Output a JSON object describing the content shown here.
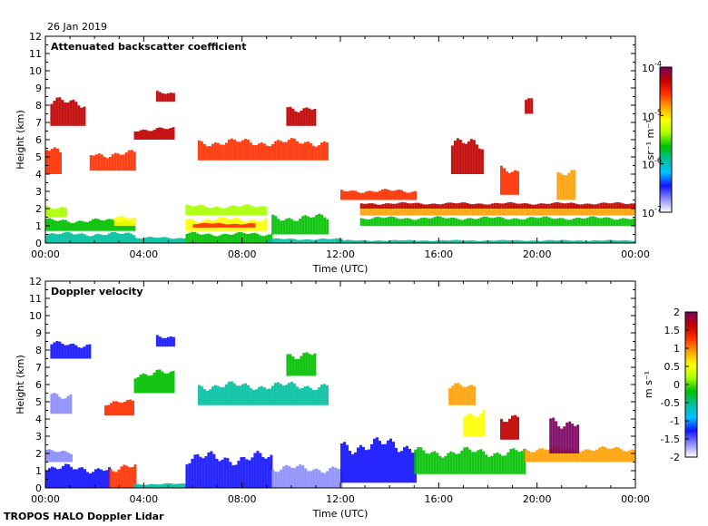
{
  "date_label": "26 Jan 2019",
  "footer": "TROPOS HALO Doppler Lidar",
  "colors": {
    "stops": [
      "#ffffff",
      "#8c8cff",
      "#1414ff",
      "#00bfff",
      "#00c0a0",
      "#00c000",
      "#aaff00",
      "#ffff00",
      "#ffa000",
      "#ff3000",
      "#c00000",
      "#7a0060"
    ]
  },
  "chart_data": [
    {
      "type": "heatmap",
      "title": "Attenuated backscatter coefficient",
      "xlabel": "Time (UTC)",
      "ylabel": "Height (km)",
      "xlim": [
        0,
        24
      ],
      "ylim": [
        0,
        12
      ],
      "x_ticks": [
        "00:00",
        "04:00",
        "08:00",
        "12:00",
        "16:00",
        "20:00",
        "00:00"
      ],
      "y_ticks": [
        "0",
        "1",
        "2",
        "3",
        "4",
        "5",
        "6",
        "7",
        "8",
        "9",
        "10",
        "11",
        "12"
      ],
      "colorbar": {
        "scale": "log",
        "range": [
          1e-07,
          0.0001
        ],
        "unit": "sr⁻¹ m⁻¹",
        "ticks": [
          {
            "base": "10",
            "exp": "-4",
            "value": 0.0001
          },
          {
            "base": "10",
            "exp": "-5",
            "value": 1e-05
          },
          {
            "base": "10",
            "exp": "-6",
            "value": 1e-06
          },
          {
            "base": "10",
            "exp": "-7",
            "value": 1e-07
          }
        ]
      },
      "features": [
        {
          "t0": 0.0,
          "t1": 3.6,
          "h0": 0.0,
          "h1": 0.7,
          "c": 4
        },
        {
          "t0": 0.0,
          "t1": 3.6,
          "h0": 0.7,
          "h1": 1.5,
          "c": 5
        },
        {
          "t0": 0.0,
          "t1": 0.8,
          "h0": 1.5,
          "h1": 2.3,
          "c": 6
        },
        {
          "t0": 2.8,
          "t1": 3.6,
          "h0": 1.0,
          "h1": 1.6,
          "c": 7
        },
        {
          "t0": 3.6,
          "t1": 5.7,
          "h0": 0.0,
          "h1": 0.4,
          "c": 4
        },
        {
          "t0": 5.7,
          "t1": 9.2,
          "h0": 0.0,
          "h1": 0.7,
          "c": 5
        },
        {
          "t0": 5.7,
          "t1": 9.0,
          "h0": 0.7,
          "h1": 1.6,
          "c": 7
        },
        {
          "t0": 6.0,
          "t1": 8.5,
          "h0": 0.9,
          "h1": 1.2,
          "c": 9
        },
        {
          "t0": 5.7,
          "t1": 9.0,
          "h0": 1.6,
          "h1": 2.3,
          "c": 6
        },
        {
          "t0": 9.0,
          "t1": 12.0,
          "h0": 0.0,
          "h1": 0.3,
          "c": 4
        },
        {
          "t0": 9.2,
          "t1": 11.5,
          "h0": 0.5,
          "h1": 1.8,
          "c": 5
        },
        {
          "t0": 11.8,
          "t1": 24.0,
          "h0": 0.0,
          "h1": 0.2,
          "c": 4
        },
        {
          "t0": 12.8,
          "t1": 24.0,
          "h0": 1.0,
          "h1": 1.6,
          "c": 5
        },
        {
          "t0": 12.8,
          "t1": 24.0,
          "h0": 1.6,
          "h1": 2.3,
          "c": 8
        },
        {
          "t0": 12.8,
          "t1": 24.0,
          "h0": 2.0,
          "h1": 2.4,
          "c": 10
        },
        {
          "t0": 12.0,
          "t1": 15.0,
          "h0": 2.5,
          "h1": 3.2,
          "c": 9
        },
        {
          "t0": 0.2,
          "t1": 1.6,
          "h0": 6.8,
          "h1": 8.6,
          "c": 10
        },
        {
          "t0": 0.0,
          "t1": 0.6,
          "h0": 4.0,
          "h1": 5.8,
          "c": 9
        },
        {
          "t0": 1.8,
          "t1": 3.6,
          "h0": 4.2,
          "h1": 5.5,
          "c": 9
        },
        {
          "t0": 3.6,
          "t1": 5.2,
          "h0": 6.0,
          "h1": 6.8,
          "c": 10
        },
        {
          "t0": 4.5,
          "t1": 5.2,
          "h0": 8.2,
          "h1": 8.9,
          "c": 10
        },
        {
          "t0": 6.2,
          "t1": 11.5,
          "h0": 4.8,
          "h1": 6.2,
          "c": 9
        },
        {
          "t0": 9.8,
          "t1": 11.0,
          "h0": 6.8,
          "h1": 8.2,
          "c": 10
        },
        {
          "t0": 16.5,
          "t1": 17.8,
          "h0": 4.0,
          "h1": 6.3,
          "c": 10
        },
        {
          "t0": 18.5,
          "t1": 19.2,
          "h0": 2.8,
          "h1": 4.6,
          "c": 9
        },
        {
          "t0": 19.5,
          "t1": 19.8,
          "h0": 7.5,
          "h1": 8.5,
          "c": 10
        },
        {
          "t0": 20.8,
          "t1": 21.5,
          "h0": 2.5,
          "h1": 4.4,
          "c": 8
        }
      ]
    },
    {
      "type": "heatmap",
      "title": "Doppler velocity",
      "xlabel": "Time (UTC)",
      "ylabel": "Height (km)",
      "xlim": [
        0,
        24
      ],
      "ylim": [
        0,
        12
      ],
      "x_ticks": [
        "00:00",
        "04:00",
        "08:00",
        "12:00",
        "16:00",
        "20:00",
        "00:00"
      ],
      "y_ticks": [
        "0",
        "1",
        "2",
        "3",
        "4",
        "5",
        "6",
        "7",
        "8",
        "9",
        "10",
        "11",
        "12"
      ],
      "colorbar": {
        "scale": "linear",
        "range": [
          -2,
          2
        ],
        "unit": "m s⁻¹",
        "ticks": [
          "2",
          "1.5",
          "1",
          "0.5",
          "0",
          "-0.5",
          "-1",
          "-1.5",
          "-2"
        ]
      },
      "features": [
        {
          "t0": 0.0,
          "t1": 2.6,
          "h0": 0.0,
          "h1": 1.5,
          "c": 2
        },
        {
          "t0": 0.0,
          "t1": 1.0,
          "h0": 1.5,
          "h1": 2.3,
          "c": 1
        },
        {
          "t0": 2.6,
          "t1": 3.6,
          "h0": 0.0,
          "h1": 1.6,
          "c": 9
        },
        {
          "t0": 3.6,
          "t1": 5.7,
          "h0": 0.0,
          "h1": 0.3,
          "c": 4
        },
        {
          "t0": 5.7,
          "t1": 9.2,
          "h0": 0.0,
          "h1": 2.3,
          "c": 2
        },
        {
          "t0": 9.2,
          "t1": 12.0,
          "h0": 0.0,
          "h1": 1.5,
          "c": 1
        },
        {
          "t0": 12.0,
          "t1": 15.0,
          "h0": 0.3,
          "h1": 3.2,
          "c": 2
        },
        {
          "t0": 15.0,
          "t1": 19.5,
          "h0": 0.8,
          "h1": 2.5,
          "c": 5
        },
        {
          "t0": 19.5,
          "t1": 24.0,
          "h0": 1.5,
          "h1": 2.5,
          "c": 8
        },
        {
          "t0": 20.5,
          "t1": 21.7,
          "h0": 2.0,
          "h1": 4.5,
          "c": 11
        },
        {
          "t0": 0.2,
          "t1": 1.8,
          "h0": 7.5,
          "h1": 8.6,
          "c": 2
        },
        {
          "t0": 0.2,
          "t1": 1.0,
          "h0": 4.3,
          "h1": 5.8,
          "c": 1
        },
        {
          "t0": 2.4,
          "t1": 3.6,
          "h0": 4.2,
          "h1": 5.2,
          "c": 9
        },
        {
          "t0": 3.6,
          "t1": 5.2,
          "h0": 5.5,
          "h1": 7.0,
          "c": 5
        },
        {
          "t0": 4.5,
          "t1": 5.2,
          "h0": 8.2,
          "h1": 9.0,
          "c": 2
        },
        {
          "t0": 6.2,
          "t1": 11.5,
          "h0": 4.8,
          "h1": 6.3,
          "c": 4
        },
        {
          "t0": 9.8,
          "t1": 11.0,
          "h0": 6.5,
          "h1": 8.2,
          "c": 5
        },
        {
          "t0": 16.4,
          "t1": 17.4,
          "h0": 4.8,
          "h1": 6.2,
          "c": 8
        },
        {
          "t0": 17.0,
          "t1": 17.8,
          "h0": 3.0,
          "h1": 4.8,
          "c": 7
        },
        {
          "t0": 18.5,
          "t1": 19.2,
          "h0": 2.8,
          "h1": 4.6,
          "c": 10
        }
      ]
    }
  ]
}
